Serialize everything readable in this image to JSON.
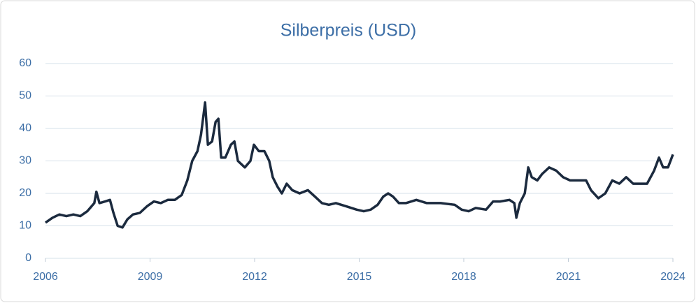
{
  "chart_data": {
    "type": "line",
    "title": "Silberpreis (USD)",
    "x": [
      2006.0,
      2006.2,
      2006.4,
      2006.6,
      2006.8,
      2007.0,
      2007.2,
      2007.4,
      2007.46,
      2007.55,
      2007.71,
      2007.85,
      2007.95,
      2008.07,
      2008.21,
      2008.35,
      2008.51,
      2008.71,
      2008.91,
      2009.11,
      2009.31,
      2009.51,
      2009.71,
      2009.91,
      2010.07,
      2010.21,
      2010.36,
      2010.46,
      2010.58,
      2010.66,
      2010.78,
      2010.88,
      2010.96,
      2011.04,
      2011.16,
      2011.32,
      2011.42,
      2011.52,
      2011.72,
      2011.88,
      2011.98,
      2012.12,
      2012.28,
      2012.42,
      2012.52,
      2012.66,
      2012.78,
      2012.92,
      2013.08,
      2013.29,
      2013.53,
      2013.73,
      2013.93,
      2014.13,
      2014.33,
      2014.63,
      2014.93,
      2015.13,
      2015.33,
      2015.53,
      2015.69,
      2015.83,
      2015.97,
      2016.14,
      2016.34,
      2016.64,
      2016.94,
      2017.34,
      2017.74,
      2017.94,
      2018.14,
      2018.34,
      2018.64,
      2018.84,
      2019.04,
      2019.31,
      2019.45,
      2019.51,
      2019.61,
      2019.75,
      2019.85,
      2019.95,
      2020.11,
      2020.25,
      2020.45,
      2020.65,
      2020.85,
      2021.05,
      2021.25,
      2021.51,
      2021.65,
      2021.86,
      2022.06,
      2022.26,
      2022.46,
      2022.66,
      2022.86,
      2023.06,
      2023.26,
      2023.46,
      2023.6,
      2023.72,
      2023.86,
      2024.0
    ],
    "series": [
      {
        "name": "Silberpreis",
        "color": "#1b2a3e",
        "values": [
          11,
          12.5,
          13.5,
          13,
          13.5,
          13,
          14.5,
          17,
          20.5,
          17,
          17.5,
          18,
          14,
          10,
          9.5,
          12,
          13.5,
          14,
          16,
          17.5,
          17,
          18,
          18,
          19.5,
          24,
          30,
          33,
          38,
          48,
          35,
          36,
          42,
          43,
          31,
          31,
          35,
          36,
          30,
          28,
          30,
          35,
          33,
          33,
          30,
          25,
          22,
          20,
          23,
          21,
          20,
          21,
          19,
          17,
          16.5,
          17,
          16,
          15,
          14.5,
          15,
          16.5,
          19,
          20,
          19,
          17,
          17,
          18,
          17,
          17,
          16.5,
          15,
          14.5,
          15.5,
          15,
          17.5,
          17.5,
          18,
          17,
          12.5,
          17,
          20,
          28,
          25,
          24,
          26,
          28,
          27,
          25,
          24,
          24,
          24,
          21,
          18.5,
          20,
          24,
          23,
          25,
          23,
          23,
          23,
          27,
          31,
          28,
          28,
          32
        ]
      }
    ],
    "xlim": [
      2006,
      2024
    ],
    "xticks": [
      2006,
      2009,
      2012,
      2015,
      2018,
      2021,
      2024
    ],
    "ylim": [
      0,
      60
    ],
    "yticks": [
      0,
      10,
      20,
      30,
      40,
      50,
      60
    ],
    "grid": true
  }
}
